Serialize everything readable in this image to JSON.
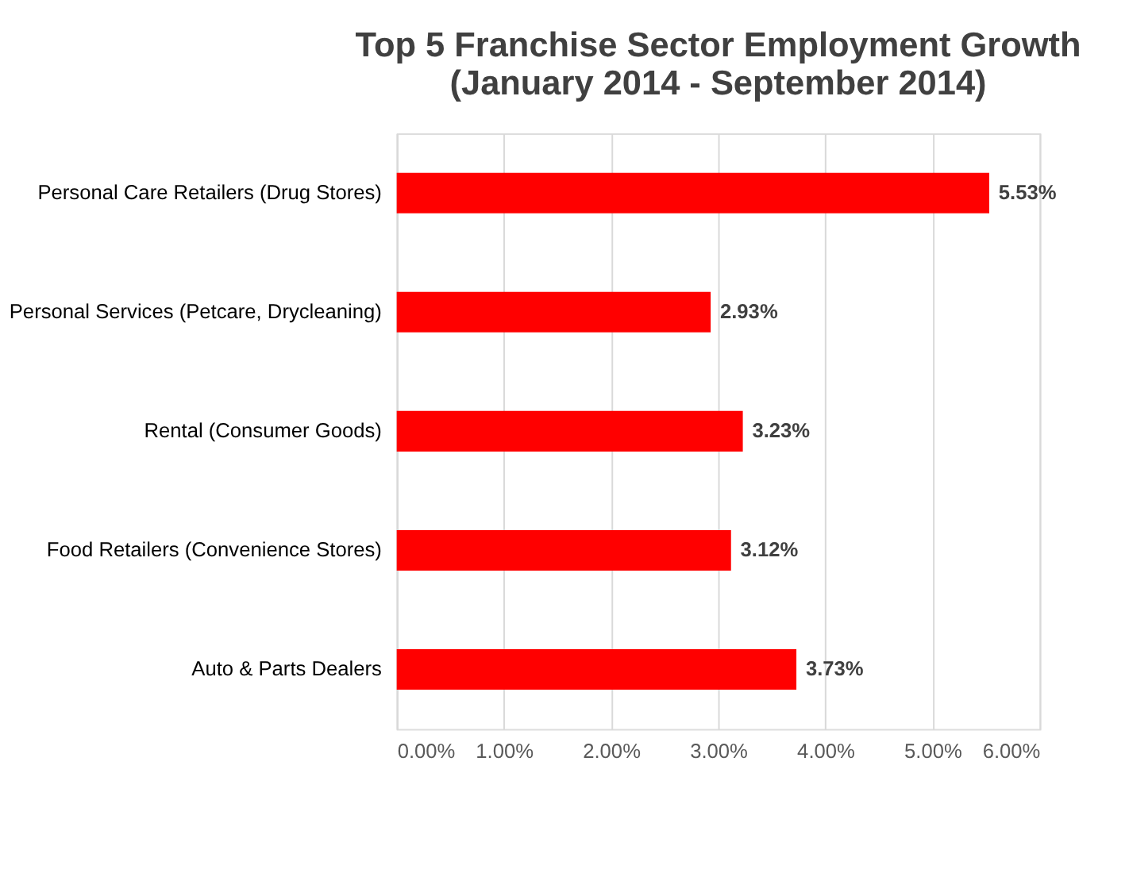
{
  "chart_data": {
    "type": "bar",
    "orientation": "horizontal",
    "title": "Top 5 Franchise Sector Employment Growth\n(January 2014 - September 2014)",
    "categories": [
      "Personal Care Retailers (Drug Stores)",
      "Personal Services (Petcare, Drycleaning)",
      "Rental (Consumer Goods)",
      "Food Retailers (Convenience Stores)",
      "Auto & Parts Dealers"
    ],
    "values": [
      5.53,
      2.93,
      3.23,
      3.12,
      3.73
    ],
    "value_labels": [
      "5.53%",
      "2.93%",
      "3.23%",
      "3.12%",
      "3.73%"
    ],
    "color": "#ff0000",
    "xlim": [
      0,
      6
    ],
    "xticks": [
      {
        "value": 0,
        "label": "0.00%"
      },
      {
        "value": 1,
        "label": "1.00%"
      },
      {
        "value": 2,
        "label": "2.00%"
      },
      {
        "value": 3,
        "label": "3.00%"
      },
      {
        "value": 4,
        "label": "4.00%"
      },
      {
        "value": 5,
        "label": "5.00%"
      },
      {
        "value": 6,
        "label": "6.00%"
      }
    ],
    "grid": "x"
  }
}
